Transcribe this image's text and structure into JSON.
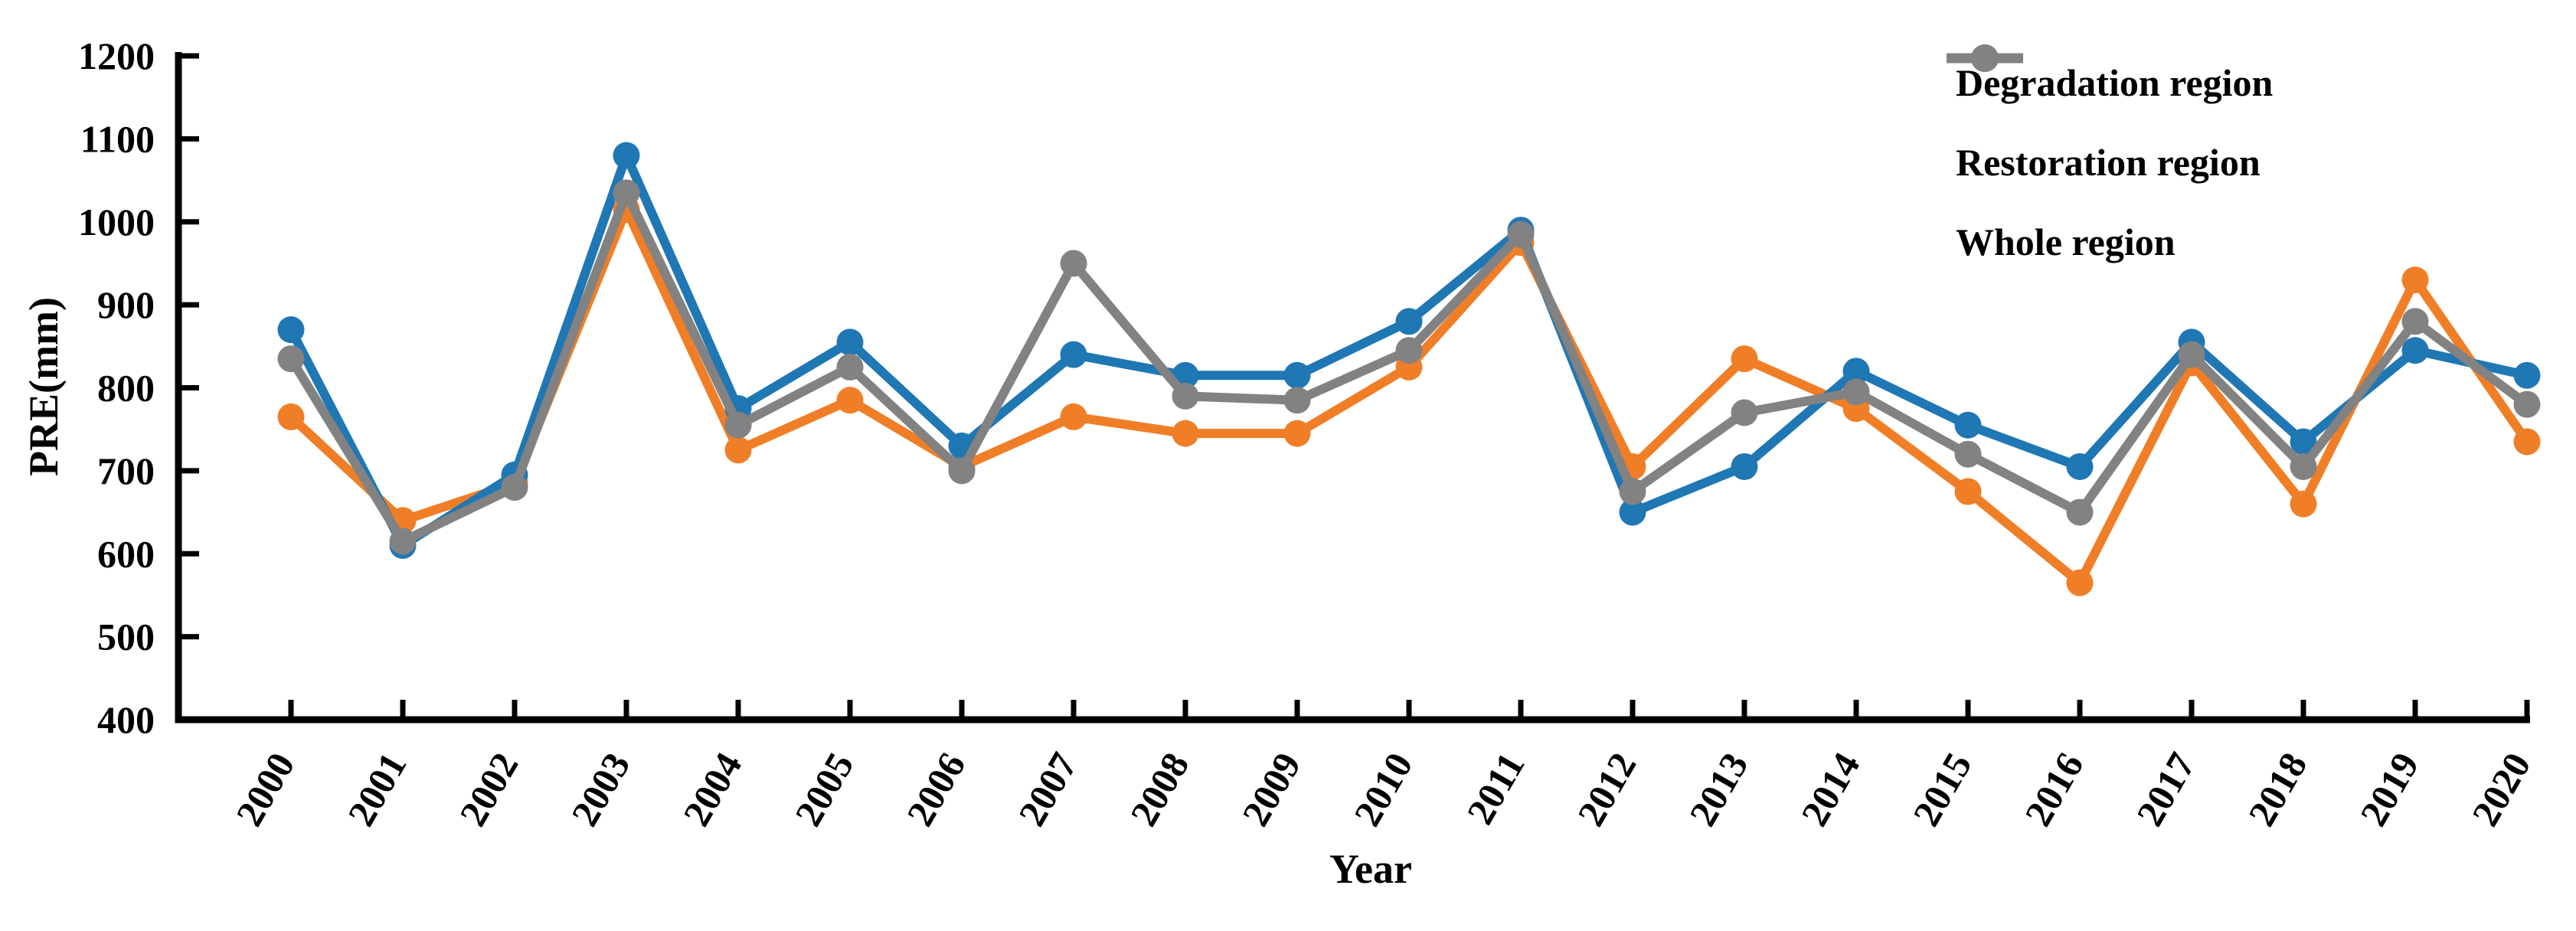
{
  "chart_data": {
    "type": "line",
    "title": "",
    "xlabel": "Year",
    "ylabel": "PRE(mm)",
    "x": [
      "2000",
      "2001",
      "2002",
      "2003",
      "2004",
      "2005",
      "2006",
      "2007",
      "2008",
      "2009",
      "2010",
      "2011",
      "2012",
      "2013",
      "2014",
      "2015",
      "2016",
      "2017",
      "2018",
      "2019",
      "2020"
    ],
    "ylim": [
      400,
      1200
    ],
    "ytick_interval": 100,
    "yticks": [
      400,
      500,
      600,
      700,
      800,
      900,
      1000,
      1100,
      1200
    ],
    "grid": false,
    "legend_position": "top-right-inside",
    "axis_color": "#000000",
    "series": [
      {
        "name": "Degradation region",
        "color": "#F07E27",
        "values": [
          765,
          640,
          685,
          1015,
          725,
          785,
          705,
          765,
          745,
          745,
          825,
          975,
          705,
          835,
          775,
          675,
          565,
          830,
          660,
          930,
          735
        ]
      },
      {
        "name": "Restoration region",
        "color": "#1F77B4",
        "values": [
          870,
          610,
          695,
          1080,
          775,
          855,
          730,
          840,
          815,
          815,
          880,
          990,
          650,
          705,
          820,
          755,
          705,
          855,
          735,
          845,
          815
        ]
      },
      {
        "name": "Whole region",
        "color": "#828282",
        "values": [
          835,
          615,
          680,
          1035,
          755,
          825,
          700,
          950,
          790,
          785,
          845,
          985,
          675,
          770,
          795,
          720,
          650,
          840,
          705,
          880,
          780
        ]
      }
    ]
  }
}
